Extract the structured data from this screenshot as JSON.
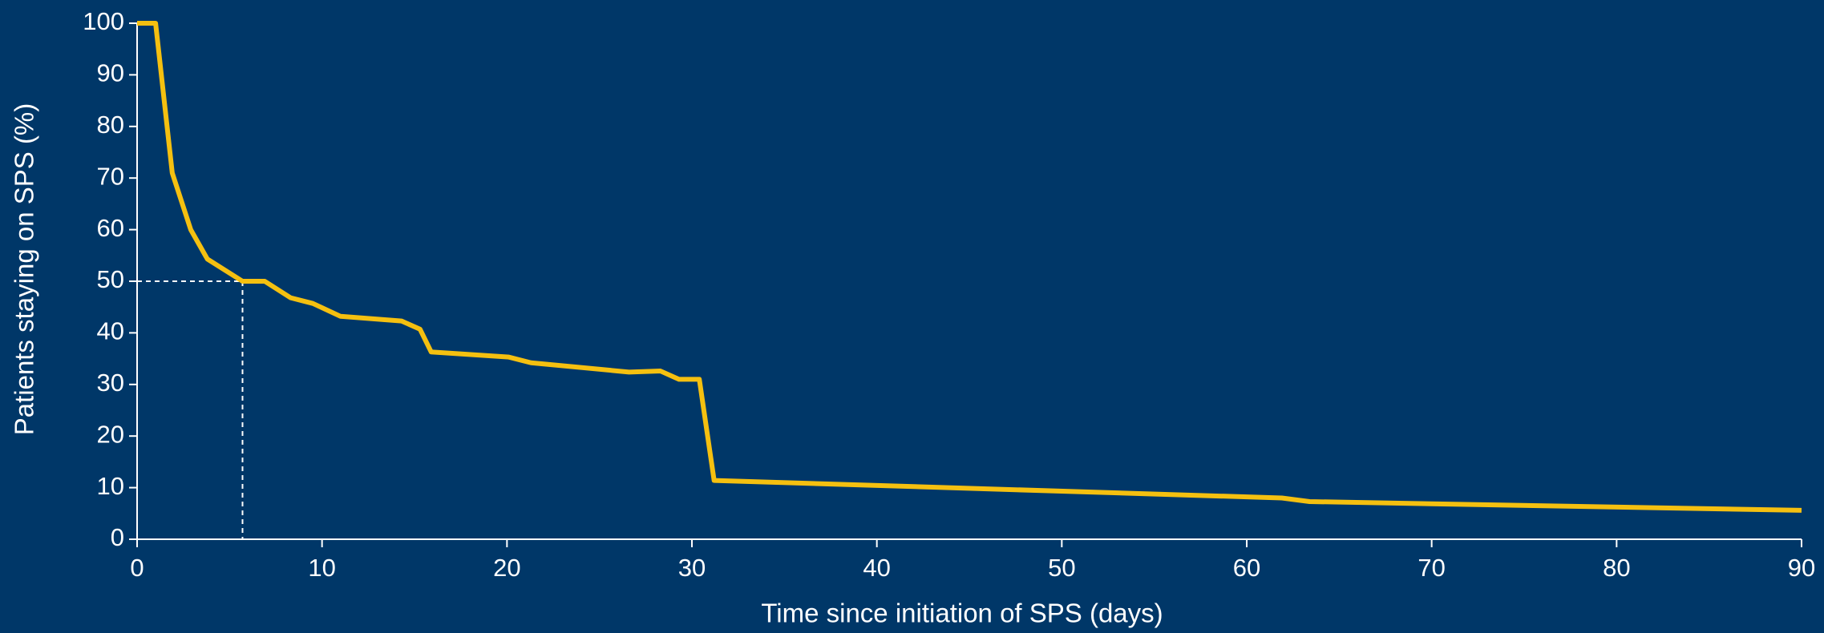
{
  "chart_data": {
    "type": "line",
    "x_label": "Time since initiation of SPS (days)",
    "y_label": "Patients staying on SPS (%)",
    "x": [
      0,
      1,
      1.9,
      2.9,
      3.8,
      5.7,
      6.9,
      8.3,
      9.5,
      11.0,
      14.3,
      15.3,
      15.9,
      20.1,
      21.3,
      26.6,
      28.3,
      29.3,
      30.4,
      31.2,
      61.9,
      63.4,
      90
    ],
    "series": [
      {
        "color": "#f5c010",
        "values": [
          100,
          100,
          71,
          60,
          54.3,
          50,
          50,
          46.8,
          45.7,
          43.2,
          42.3,
          40.7,
          36.3,
          35.3,
          34.2,
          32.4,
          32.6,
          31,
          31,
          11.4,
          8,
          7.3,
          5.6
        ]
      }
    ],
    "median_marker": {
      "x": 5.7,
      "y": 50
    },
    "xlim": [
      0,
      90
    ],
    "xticks": [
      0,
      10,
      20,
      30,
      40,
      50,
      60,
      70,
      80,
      90
    ],
    "ylim": [
      0,
      100
    ],
    "yticks": [
      0,
      10,
      20,
      30,
      40,
      50,
      60,
      70,
      80,
      90,
      100
    ]
  }
}
